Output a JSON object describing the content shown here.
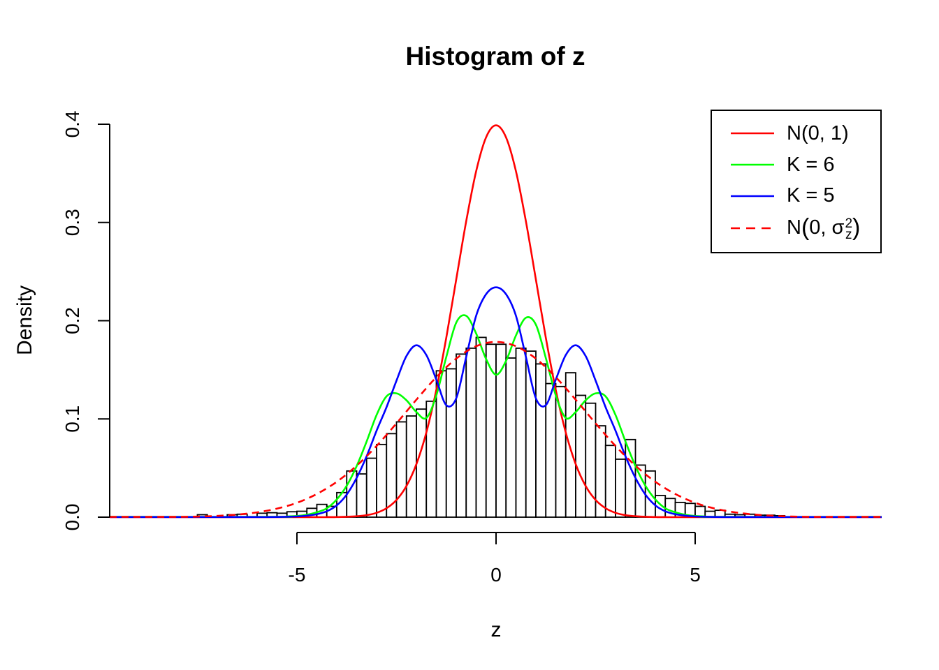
{
  "chart_data": {
    "type": "histogram+curves",
    "title": "Histogram of z",
    "xlabel": "z",
    "ylabel": "Density",
    "grid": false,
    "background": "#ffffff",
    "axis_color": "#000000",
    "xlim": [
      -9.7,
      9.7
    ],
    "ylim": [
      0,
      0.4
    ],
    "x_ticks": [
      {
        "value": -5,
        "label": "-5"
      },
      {
        "value": 0,
        "label": "0"
      },
      {
        "value": 5,
        "label": "5"
      }
    ],
    "y_ticks": [
      {
        "value": 0.0,
        "label": "0.0"
      },
      {
        "value": 0.1,
        "label": "0.1"
      },
      {
        "value": 0.2,
        "label": "0.2"
      },
      {
        "value": 0.3,
        "label": "0.3"
      },
      {
        "value": 0.4,
        "label": "0.4"
      }
    ],
    "histogram": {
      "bar_fill": "#ffffff",
      "bar_border": "#000000",
      "bin_start": -7.5,
      "bin_width": 0.25,
      "densities": [
        0.0025,
        0,
        0,
        0.0025,
        0.003,
        0,
        0.004,
        0.0045,
        0.004,
        0.0055,
        0.006,
        0.009,
        0.013,
        0.011,
        0.025,
        0.047,
        0.044,
        0.06,
        0.074,
        0.085,
        0.097,
        0.103,
        0.11,
        0.118,
        0.149,
        0.151,
        0.166,
        0.172,
        0.183,
        0.176,
        0.176,
        0.162,
        0.172,
        0.169,
        0.156,
        0.136,
        0.133,
        0.147,
        0.124,
        0.116,
        0.093,
        0.073,
        0.059,
        0.079,
        0.053,
        0.047,
        0.022,
        0.019,
        0.015,
        0.014,
        0.011,
        0.006,
        0.007,
        0.003,
        0.0025,
        0.003,
        0.002,
        0.002,
        0.0015
      ]
    },
    "curves": [
      {
        "name": "N(0, 1)",
        "color": "#ff0000",
        "dashed": false,
        "z_start": -4.5,
        "dz": 0.25,
        "density": [
          0,
          0.0001,
          0.0001,
          0.0004,
          0.0009,
          0.002,
          0.0044,
          0.0091,
          0.0175,
          0.0317,
          0.054,
          0.0863,
          0.1295,
          0.1826,
          0.242,
          0.3011,
          0.3521,
          0.3867,
          0.3989,
          0.3867,
          0.3521,
          0.3011,
          0.242,
          0.1826,
          0.1295,
          0.0863,
          0.054,
          0.0317,
          0.0175,
          0.0091,
          0.0044,
          0.002,
          0.0009,
          0.0004,
          0.0001,
          0.0001,
          0
        ]
      },
      {
        "name": "K = 6",
        "color": "#00ff00",
        "dashed": false,
        "z_start": -5.5,
        "dz": 0.25,
        "density": [
          0.0003,
          0.0007,
          0.0012,
          0.0025,
          0.005,
          0.009,
          0.018,
          0.032,
          0.052,
          0.077,
          0.104,
          0.123,
          0.126,
          0.119,
          0.107,
          0.101,
          0.124,
          0.163,
          0.198,
          0.205,
          0.187,
          0.161,
          0.145,
          0.159,
          0.185,
          0.203,
          0.196,
          0.162,
          0.124,
          0.101,
          0.107,
          0.119,
          0.126,
          0.123,
          0.104,
          0.077,
          0.052,
          0.032,
          0.018,
          0.009,
          0.005,
          0.0025,
          0.0012,
          0.0007,
          0.0003
        ]
      },
      {
        "name": "K = 5",
        "color": "#0000ff",
        "dashed": false,
        "z_start": -6.0,
        "dz": 0.25,
        "density": [
          0.0001,
          0.0001,
          0.0002,
          0.0004,
          0.0007,
          0.0015,
          0.003,
          0.006,
          0.012,
          0.023,
          0.04,
          0.062,
          0.088,
          0.112,
          0.139,
          0.164,
          0.175,
          0.165,
          0.14,
          0.114,
          0.121,
          0.163,
          0.205,
          0.227,
          0.234,
          0.227,
          0.205,
          0.163,
          0.121,
          0.114,
          0.14,
          0.165,
          0.175,
          0.164,
          0.139,
          0.112,
          0.088,
          0.062,
          0.04,
          0.023,
          0.012,
          0.006,
          0.003,
          0.0015,
          0.0007,
          0.0004,
          0.0002,
          0.0001,
          0.0001
        ]
      },
      {
        "name": "N(0, sigma_z^2)",
        "color": "#ff0000",
        "dashed": true,
        "z_start": -8.0,
        "dz": 0.5,
        "density": [
          0.0003,
          0.0006,
          0.0013,
          0.0026,
          0.0049,
          0.0087,
          0.0146,
          0.0236,
          0.036,
          0.0524,
          0.0725,
          0.0955,
          0.1196,
          0.1425,
          0.1614,
          0.174,
          0.1784,
          0.174,
          0.1614,
          0.1425,
          0.1196,
          0.0955,
          0.0725,
          0.0524,
          0.036,
          0.0236,
          0.0146,
          0.0087,
          0.0049,
          0.0026,
          0.0013,
          0.0006,
          0.0003
        ]
      }
    ],
    "legend": {
      "position": "topright",
      "entries": [
        {
          "label": "N(0, 1)",
          "color": "#ff0000",
          "dashed": false
        },
        {
          "label": "K = 6",
          "color": "#00ff00",
          "dashed": false
        },
        {
          "label": "K = 5",
          "color": "#0000ff",
          "dashed": false
        },
        {
          "label": "N(0, σz2)",
          "color": "#ff0000",
          "dashed": true,
          "rich": {
            "pre": "N",
            "open": "(",
            "body": "0, ",
            "sigma": "σ",
            "sup": "2",
            "sub": "z",
            "close": ")"
          }
        }
      ]
    }
  }
}
